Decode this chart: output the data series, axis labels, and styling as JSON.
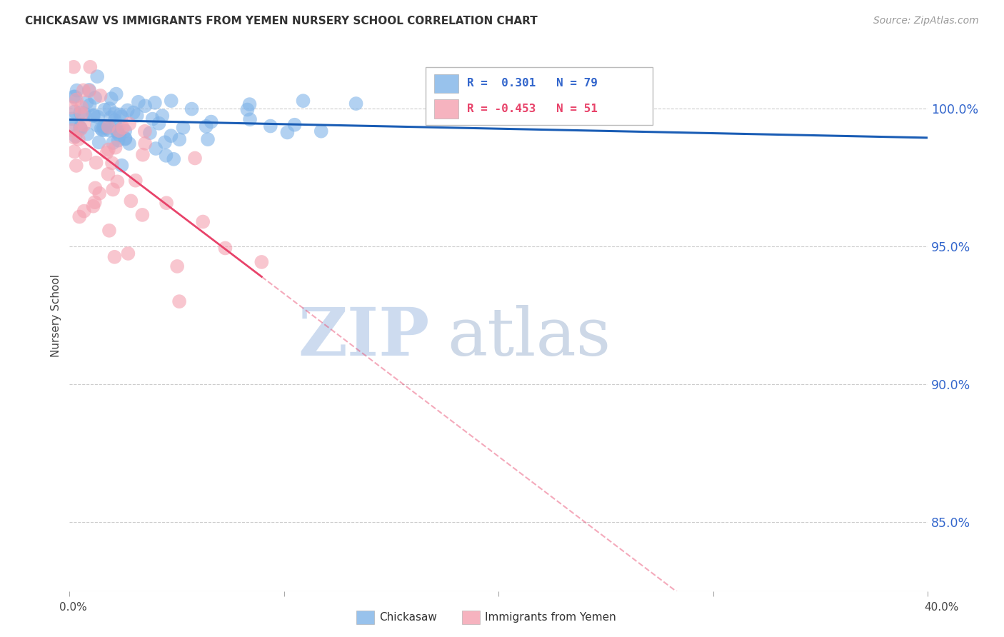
{
  "title": "CHICKASAW VS IMMIGRANTS FROM YEMEN NURSERY SCHOOL CORRELATION CHART",
  "source": "Source: ZipAtlas.com",
  "ylabel": "Nursery School",
  "y_ticks": [
    85.0,
    90.0,
    95.0,
    100.0
  ],
  "y_tick_labels": [
    "85.0%",
    "90.0%",
    "95.0%",
    "100.0%"
  ],
  "xlim": [
    0.0,
    40.0
  ],
  "ylim": [
    82.5,
    102.5
  ],
  "chickasaw_R": 0.301,
  "chickasaw_N": 79,
  "yemen_R": -0.453,
  "yemen_N": 51,
  "chickasaw_color": "#7fb3e8",
  "yemen_color": "#f4a0b0",
  "trendline_chickasaw_color": "#1a5db5",
  "trendline_yemen_color": "#e8436a",
  "bg_color": "#ffffff",
  "grid_color": "#cccccc",
  "ytick_color": "#3366cc",
  "title_color": "#333333",
  "source_color": "#999999",
  "legend_text_blue": "#3366cc",
  "legend_text_pink": "#e8436a",
  "watermark_zip_color": "#c8d8ee",
  "watermark_atlas_color": "#b8c8de"
}
